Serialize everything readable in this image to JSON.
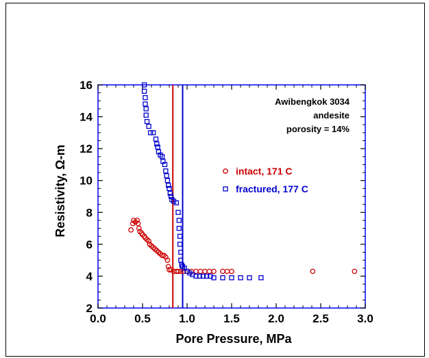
{
  "chart_data": {
    "type": "scatter",
    "xlabel": "Pore Pressure, MPa",
    "ylabel": "Resistivity, Ω-m",
    "xlim": [
      0.0,
      3.0
    ],
    "ylim": [
      2,
      16
    ],
    "xticks": [
      "0.0",
      "0.5",
      "1.0",
      "1.5",
      "2.0",
      "2.5",
      "3.0"
    ],
    "yticks": [
      "2",
      "4",
      "6",
      "8",
      "10",
      "12",
      "14",
      "16"
    ],
    "annotations": [
      "Awibengkok 3034",
      "andesite",
      "porosity = 14%"
    ],
    "legend_position": "right",
    "vlines": [
      {
        "x": 0.84,
        "color": "#cc0000"
      },
      {
        "x": 0.95,
        "color": "#0000cc"
      }
    ],
    "series": [
      {
        "name": "intact, 171 C",
        "marker": "circle",
        "color": "#cc0000",
        "points": [
          [
            0.37,
            6.9
          ],
          [
            0.39,
            7.3
          ],
          [
            0.4,
            7.5
          ],
          [
            0.42,
            7.4
          ],
          [
            0.44,
            7.5
          ],
          [
            0.45,
            7.3
          ],
          [
            0.46,
            7.0
          ],
          [
            0.47,
            6.8
          ],
          [
            0.49,
            6.7
          ],
          [
            0.5,
            6.6
          ],
          [
            0.52,
            6.5
          ],
          [
            0.53,
            6.4
          ],
          [
            0.55,
            6.3
          ],
          [
            0.57,
            6.2
          ],
          [
            0.58,
            6.0
          ],
          [
            0.6,
            5.9
          ],
          [
            0.62,
            5.8
          ],
          [
            0.64,
            5.7
          ],
          [
            0.66,
            5.6
          ],
          [
            0.68,
            5.5
          ],
          [
            0.7,
            5.4
          ],
          [
            0.72,
            5.3
          ],
          [
            0.74,
            5.3
          ],
          [
            0.76,
            5.2
          ],
          [
            0.78,
            5.0
          ],
          [
            0.79,
            4.6
          ],
          [
            0.8,
            4.4
          ],
          [
            0.82,
            4.4
          ],
          [
            0.85,
            4.3
          ],
          [
            0.88,
            4.3
          ],
          [
            0.9,
            4.3
          ],
          [
            0.93,
            4.3
          ],
          [
            0.96,
            4.3
          ],
          [
            1.0,
            4.3
          ],
          [
            1.05,
            4.3
          ],
          [
            1.1,
            4.3
          ],
          [
            1.15,
            4.3
          ],
          [
            1.2,
            4.3
          ],
          [
            1.25,
            4.3
          ],
          [
            1.3,
            4.3
          ],
          [
            1.4,
            4.3
          ],
          [
            1.45,
            4.3
          ],
          [
            1.5,
            4.3
          ],
          [
            2.41,
            4.3
          ],
          [
            2.88,
            4.3
          ]
        ]
      },
      {
        "name": "fractured, 177 C",
        "marker": "square",
        "color": "#0000cc",
        "points": [
          [
            0.52,
            16.0
          ],
          [
            0.52,
            15.6
          ],
          [
            0.53,
            15.2
          ],
          [
            0.53,
            14.8
          ],
          [
            0.54,
            14.5
          ],
          [
            0.54,
            14.1
          ],
          [
            0.55,
            13.7
          ],
          [
            0.57,
            13.4
          ],
          [
            0.59,
            13.0
          ],
          [
            0.62,
            13.0
          ],
          [
            0.65,
            12.6
          ],
          [
            0.66,
            12.3
          ],
          [
            0.67,
            12.1
          ],
          [
            0.68,
            11.8
          ],
          [
            0.7,
            11.6
          ],
          [
            0.72,
            11.5
          ],
          [
            0.73,
            11.2
          ],
          [
            0.75,
            11.0
          ],
          [
            0.76,
            10.6
          ],
          [
            0.77,
            10.3
          ],
          [
            0.78,
            10.0
          ],
          [
            0.79,
            9.7
          ],
          [
            0.8,
            9.5
          ],
          [
            0.81,
            9.2
          ],
          [
            0.82,
            9.0
          ],
          [
            0.83,
            8.8
          ],
          [
            0.85,
            8.7
          ],
          [
            0.88,
            8.6
          ],
          [
            0.9,
            8.0
          ],
          [
            0.91,
            7.5
          ],
          [
            0.91,
            7.0
          ],
          [
            0.92,
            6.5
          ],
          [
            0.92,
            6.0
          ],
          [
            0.93,
            5.5
          ],
          [
            0.93,
            5.0
          ],
          [
            0.94,
            4.7
          ],
          [
            0.95,
            4.6
          ],
          [
            0.97,
            4.5
          ],
          [
            1.0,
            4.3
          ],
          [
            1.03,
            4.2
          ],
          [
            1.06,
            4.1
          ],
          [
            1.1,
            4.0
          ],
          [
            1.14,
            4.0
          ],
          [
            1.18,
            4.0
          ],
          [
            1.22,
            4.0
          ],
          [
            1.26,
            4.0
          ],
          [
            1.3,
            3.9
          ],
          [
            1.4,
            3.9
          ],
          [
            1.5,
            3.9
          ],
          [
            1.6,
            3.9
          ],
          [
            1.7,
            3.9
          ],
          [
            1.83,
            3.9
          ]
        ]
      }
    ]
  }
}
